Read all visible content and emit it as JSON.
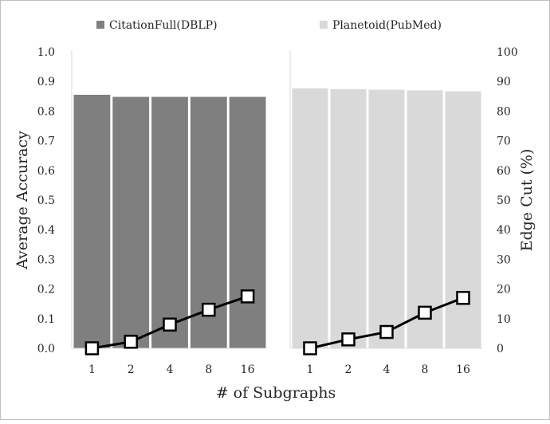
{
  "chart_data": {
    "type": "bar+line",
    "xlabel": "# of Subgraphs",
    "ylabel_left": "Average Accuracy",
    "ylabel_right": "Edge Cut (%)",
    "ylim_left": [
      0,
      1.0
    ],
    "ylim_right": [
      0,
      100
    ],
    "yticks_left": [
      "0.0",
      "0.1",
      "0.2",
      "0.3",
      "0.4",
      "0.5",
      "0.6",
      "0.7",
      "0.8",
      "0.9",
      "1.0"
    ],
    "yticks_right": [
      "0",
      "10",
      "20",
      "30",
      "40",
      "50",
      "60",
      "70",
      "80",
      "90",
      "100"
    ],
    "grid": false,
    "legend_position": "top",
    "panels": [
      {
        "name": "CitationFull(DBLP)",
        "bar_color": "#7f7f7f",
        "categories": [
          "1",
          "2",
          "4",
          "8",
          "16"
        ],
        "accuracy": [
          0.855,
          0.848,
          0.848,
          0.848,
          0.848
        ],
        "edge_cut": [
          0,
          2.2,
          8,
          13,
          17.5
        ]
      },
      {
        "name": "Planetoid(PubMed)",
        "bar_color": "#d9d9d9",
        "categories": [
          "1",
          "2",
          "4",
          "8",
          "16"
        ],
        "accuracy": [
          0.877,
          0.874,
          0.872,
          0.87,
          0.867
        ],
        "edge_cut": [
          0,
          3,
          5.5,
          12,
          17
        ]
      }
    ],
    "line_color": "#000000"
  }
}
